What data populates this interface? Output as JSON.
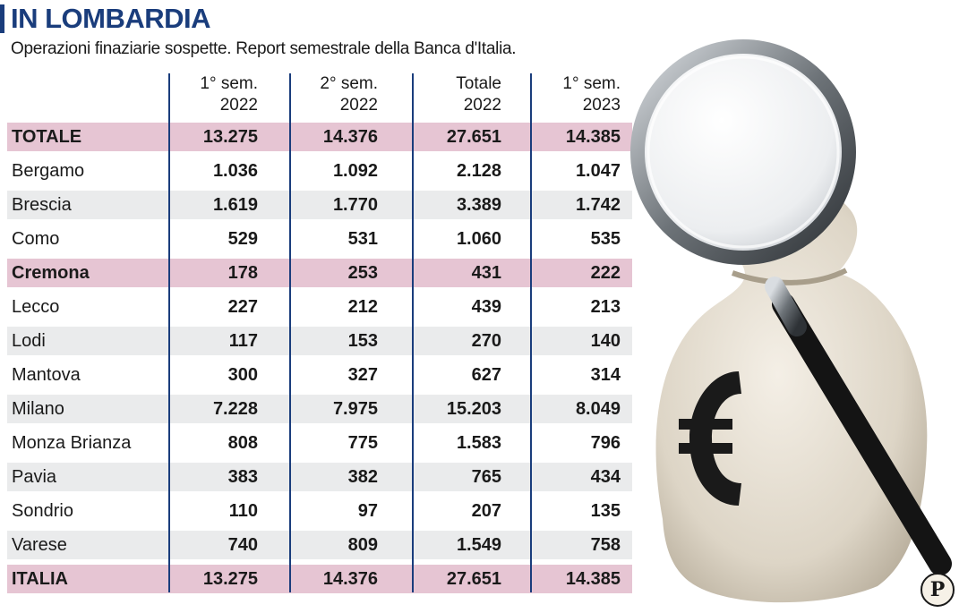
{
  "title": "IN LOMBARDIA",
  "subtitle": "Operazioni finaziarie sospette. Report semestrale della Banca d'Italia.",
  "colors": {
    "title": "#1a3d7c",
    "highlight_row": "#e6c5d3",
    "stripe_row": "#eaebec"
  },
  "logo": {
    "icon": "publisher-logo-icon",
    "letter": "P"
  },
  "chart_data": {
    "type": "table",
    "columns": [
      {
        "line1": "",
        "line2": ""
      },
      {
        "line1": "1° sem.",
        "line2": "2022"
      },
      {
        "line1": "2° sem.",
        "line2": "2022"
      },
      {
        "line1": "Totale",
        "line2": "2022"
      },
      {
        "line1": "1° sem.",
        "line2": "2023"
      }
    ],
    "rows": [
      {
        "name": "TOTALE",
        "values": [
          "13.275",
          "14.376",
          "27.651",
          "14.385"
        ],
        "highlight": true
      },
      {
        "name": "Bergamo",
        "values": [
          "1.036",
          "1.092",
          "2.128",
          "1.047"
        ],
        "highlight": false
      },
      {
        "name": "Brescia",
        "values": [
          "1.619",
          "1.770",
          "3.389",
          "1.742"
        ],
        "highlight": false
      },
      {
        "name": "Como",
        "values": [
          "529",
          "531",
          "1.060",
          "535"
        ],
        "highlight": false
      },
      {
        "name": "Cremona",
        "values": [
          "178",
          "253",
          "431",
          "222"
        ],
        "highlight": true
      },
      {
        "name": "Lecco",
        "values": [
          "227",
          "212",
          "439",
          "213"
        ],
        "highlight": false
      },
      {
        "name": "Lodi",
        "values": [
          "117",
          "153",
          "270",
          "140"
        ],
        "highlight": false
      },
      {
        "name": "Mantova",
        "values": [
          "300",
          "327",
          "627",
          "314"
        ],
        "highlight": false
      },
      {
        "name": "Milano",
        "values": [
          "7.228",
          "7.975",
          "15.203",
          "8.049"
        ],
        "highlight": false
      },
      {
        "name": "Monza Brianza",
        "values": [
          "808",
          "775",
          "1.583",
          "796"
        ],
        "highlight": false
      },
      {
        "name": "Pavia",
        "values": [
          "383",
          "382",
          "765",
          "434"
        ],
        "highlight": false
      },
      {
        "name": "Sondrio",
        "values": [
          "110",
          "97",
          "207",
          "135"
        ],
        "highlight": false
      },
      {
        "name": "Varese",
        "values": [
          "740",
          "809",
          "1.549",
          "758"
        ],
        "highlight": false
      },
      {
        "name": "ITALIA",
        "values": [
          "13.275",
          "14.376",
          "27.651",
          "14.385"
        ],
        "highlight": true
      }
    ]
  }
}
